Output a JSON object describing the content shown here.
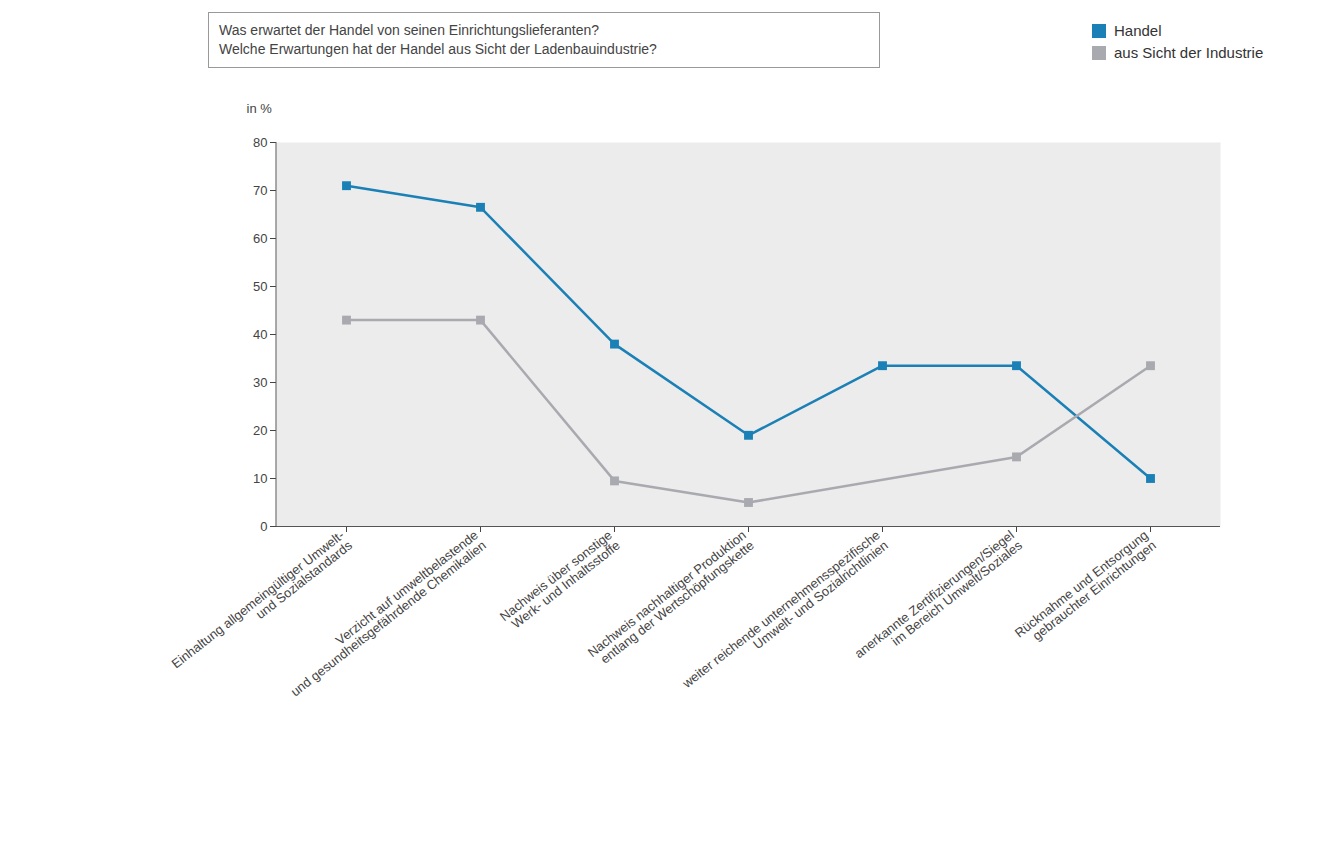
{
  "chart_data": {
    "type": "line",
    "title": "Was erwartet der Handel von seinen Einrichtungslieferanten?",
    "subtitle": "Welche Erwartungen hat der Handel aus Sicht der Ladenbauindustrie?",
    "y_label": "in %",
    "categories": [
      "Einhaltung allgemeingültiger Umwelt-\nund Sozialstandards",
      "Verzicht auf umweltbelastende\nund gesundheitsgefährdende Chemikalien",
      "Nachweis über sonstige\nWerk- und Inhaltsstoffe",
      "Nachweis nachhaltiger Produktion\nentlang der Wertschöpfungskette",
      "weiter reichende unternehmensspezifische\nUmwelt- und Sozialrichtlinien",
      "anerkannte Zertifizierungen/Siegel\nim Bereich Umwelt/Soziales",
      "Rücknahme und Entsorgung\ngebrauchter Einrichtungen"
    ],
    "series": [
      {
        "name": "Handel",
        "color": "#1a80b6",
        "marker": "square",
        "values": [
          71,
          66.5,
          38,
          19,
          33.5,
          33.5,
          10
        ]
      },
      {
        "name": "aus Sicht der Industrie",
        "color": "#a9a9b0",
        "marker": "square",
        "values": [
          43,
          43,
          9.5,
          5,
          null,
          14.5,
          33.5
        ]
      }
    ],
    "ylim": [
      0,
      80
    ],
    "yticks": [
      0,
      10,
      20,
      30,
      40,
      50,
      60,
      70,
      80
    ],
    "grid": false,
    "legend": "top-right"
  }
}
